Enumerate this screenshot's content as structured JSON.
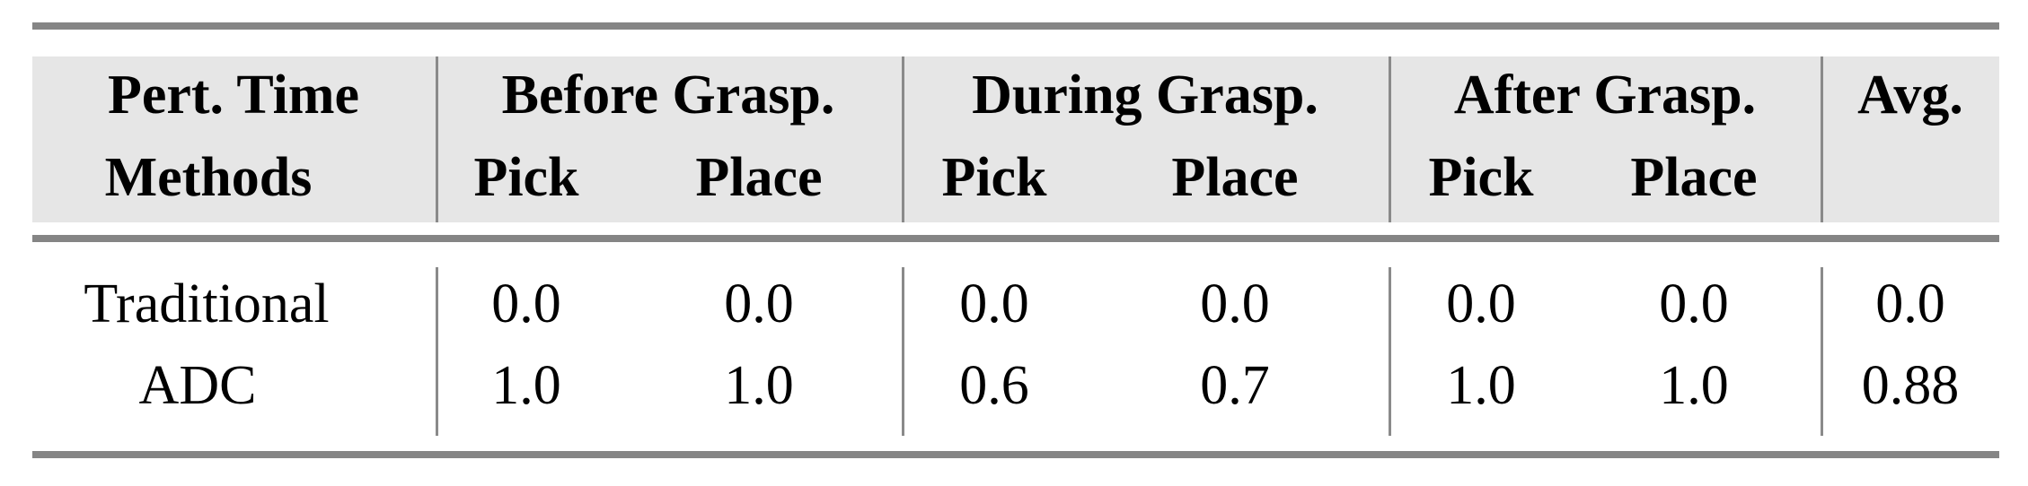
{
  "table": {
    "header_row1": {
      "label": "Pert. Time",
      "groups": [
        "Before Grasp.",
        "During Grasp.",
        "After Grasp.",
        "Avg."
      ]
    },
    "header_row2": {
      "label": "Methods",
      "subcolumns": [
        "Pick",
        "Place",
        "Pick",
        "Place",
        "Pick",
        "Place"
      ]
    },
    "rows": [
      {
        "method": "Traditional",
        "values": [
          "0.0",
          "0.0",
          "0.0",
          "0.0",
          "0.0",
          "0.0",
          "0.0"
        ]
      },
      {
        "method": "ADC",
        "values": [
          "1.0",
          "1.0",
          "0.6",
          "0.7",
          "1.0",
          "1.0",
          "0.88"
        ]
      }
    ]
  }
}
